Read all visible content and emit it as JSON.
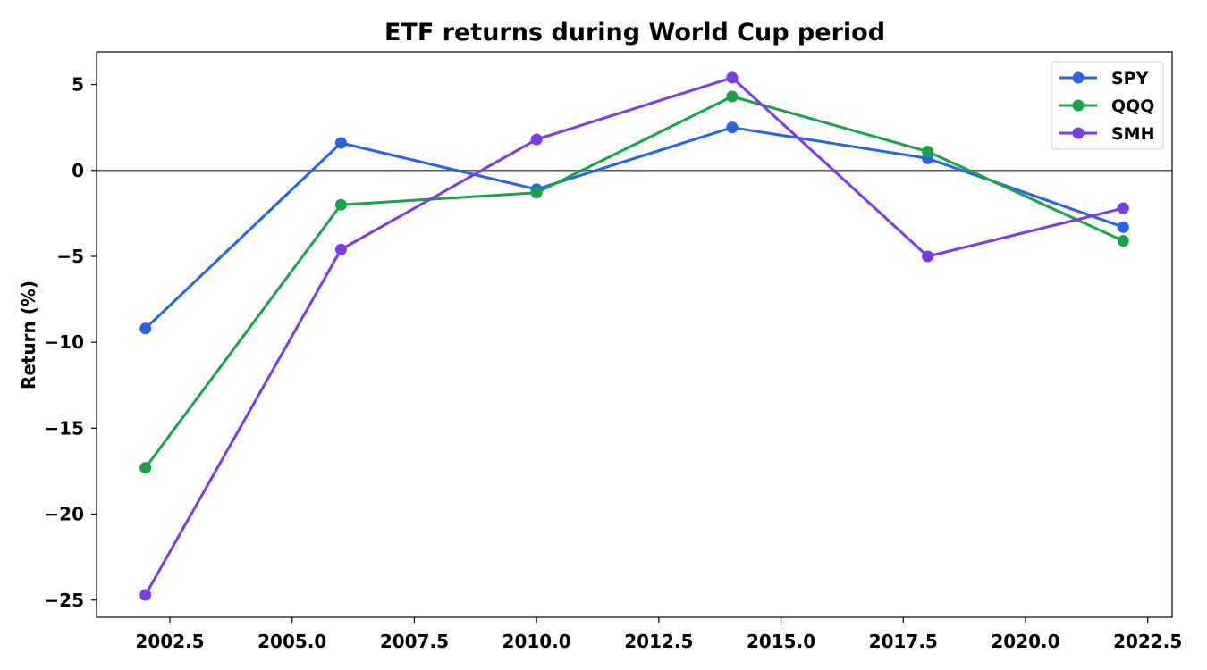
{
  "chart_data": {
    "type": "line",
    "title": "ETF returns during World Cup period",
    "xlabel": "",
    "ylabel": "Return (%)",
    "x": [
      2002,
      2006,
      2010,
      2014,
      2018,
      2022
    ],
    "xlim": [
      2001.0,
      2023.0
    ],
    "ylim": [
      -26.0,
      6.9
    ],
    "xticks": [
      2002.5,
      2005.0,
      2007.5,
      2010.0,
      2012.5,
      2015.0,
      2017.5,
      2020.0,
      2022.5
    ],
    "xtick_labels": [
      "2002.5",
      "2005.0",
      "2007.5",
      "2010.0",
      "2012.5",
      "2015.0",
      "2017.5",
      "2020.0",
      "2022.5"
    ],
    "yticks": [
      5,
      0,
      -5,
      -10,
      -15,
      -20,
      -25
    ],
    "ytick_labels": [
      "5",
      "0",
      "−5",
      "−10",
      "−15",
      "−20",
      "−25"
    ],
    "zero_line": true,
    "grid": false,
    "legend": "top-right",
    "series": [
      {
        "name": "SPY",
        "color": "#2563eb",
        "values": [
          -9.2,
          1.6,
          -1.1,
          2.5,
          0.7,
          -3.3
        ]
      },
      {
        "name": "QQQ",
        "color": "#16a34a",
        "values": [
          -17.3,
          -2.0,
          -1.3,
          4.3,
          1.1,
          -4.1
        ]
      },
      {
        "name": "SMH",
        "color": "#7c3aed",
        "values": [
          -24.7,
          -4.6,
          1.8,
          5.4,
          -5.0,
          -2.2
        ]
      }
    ]
  }
}
